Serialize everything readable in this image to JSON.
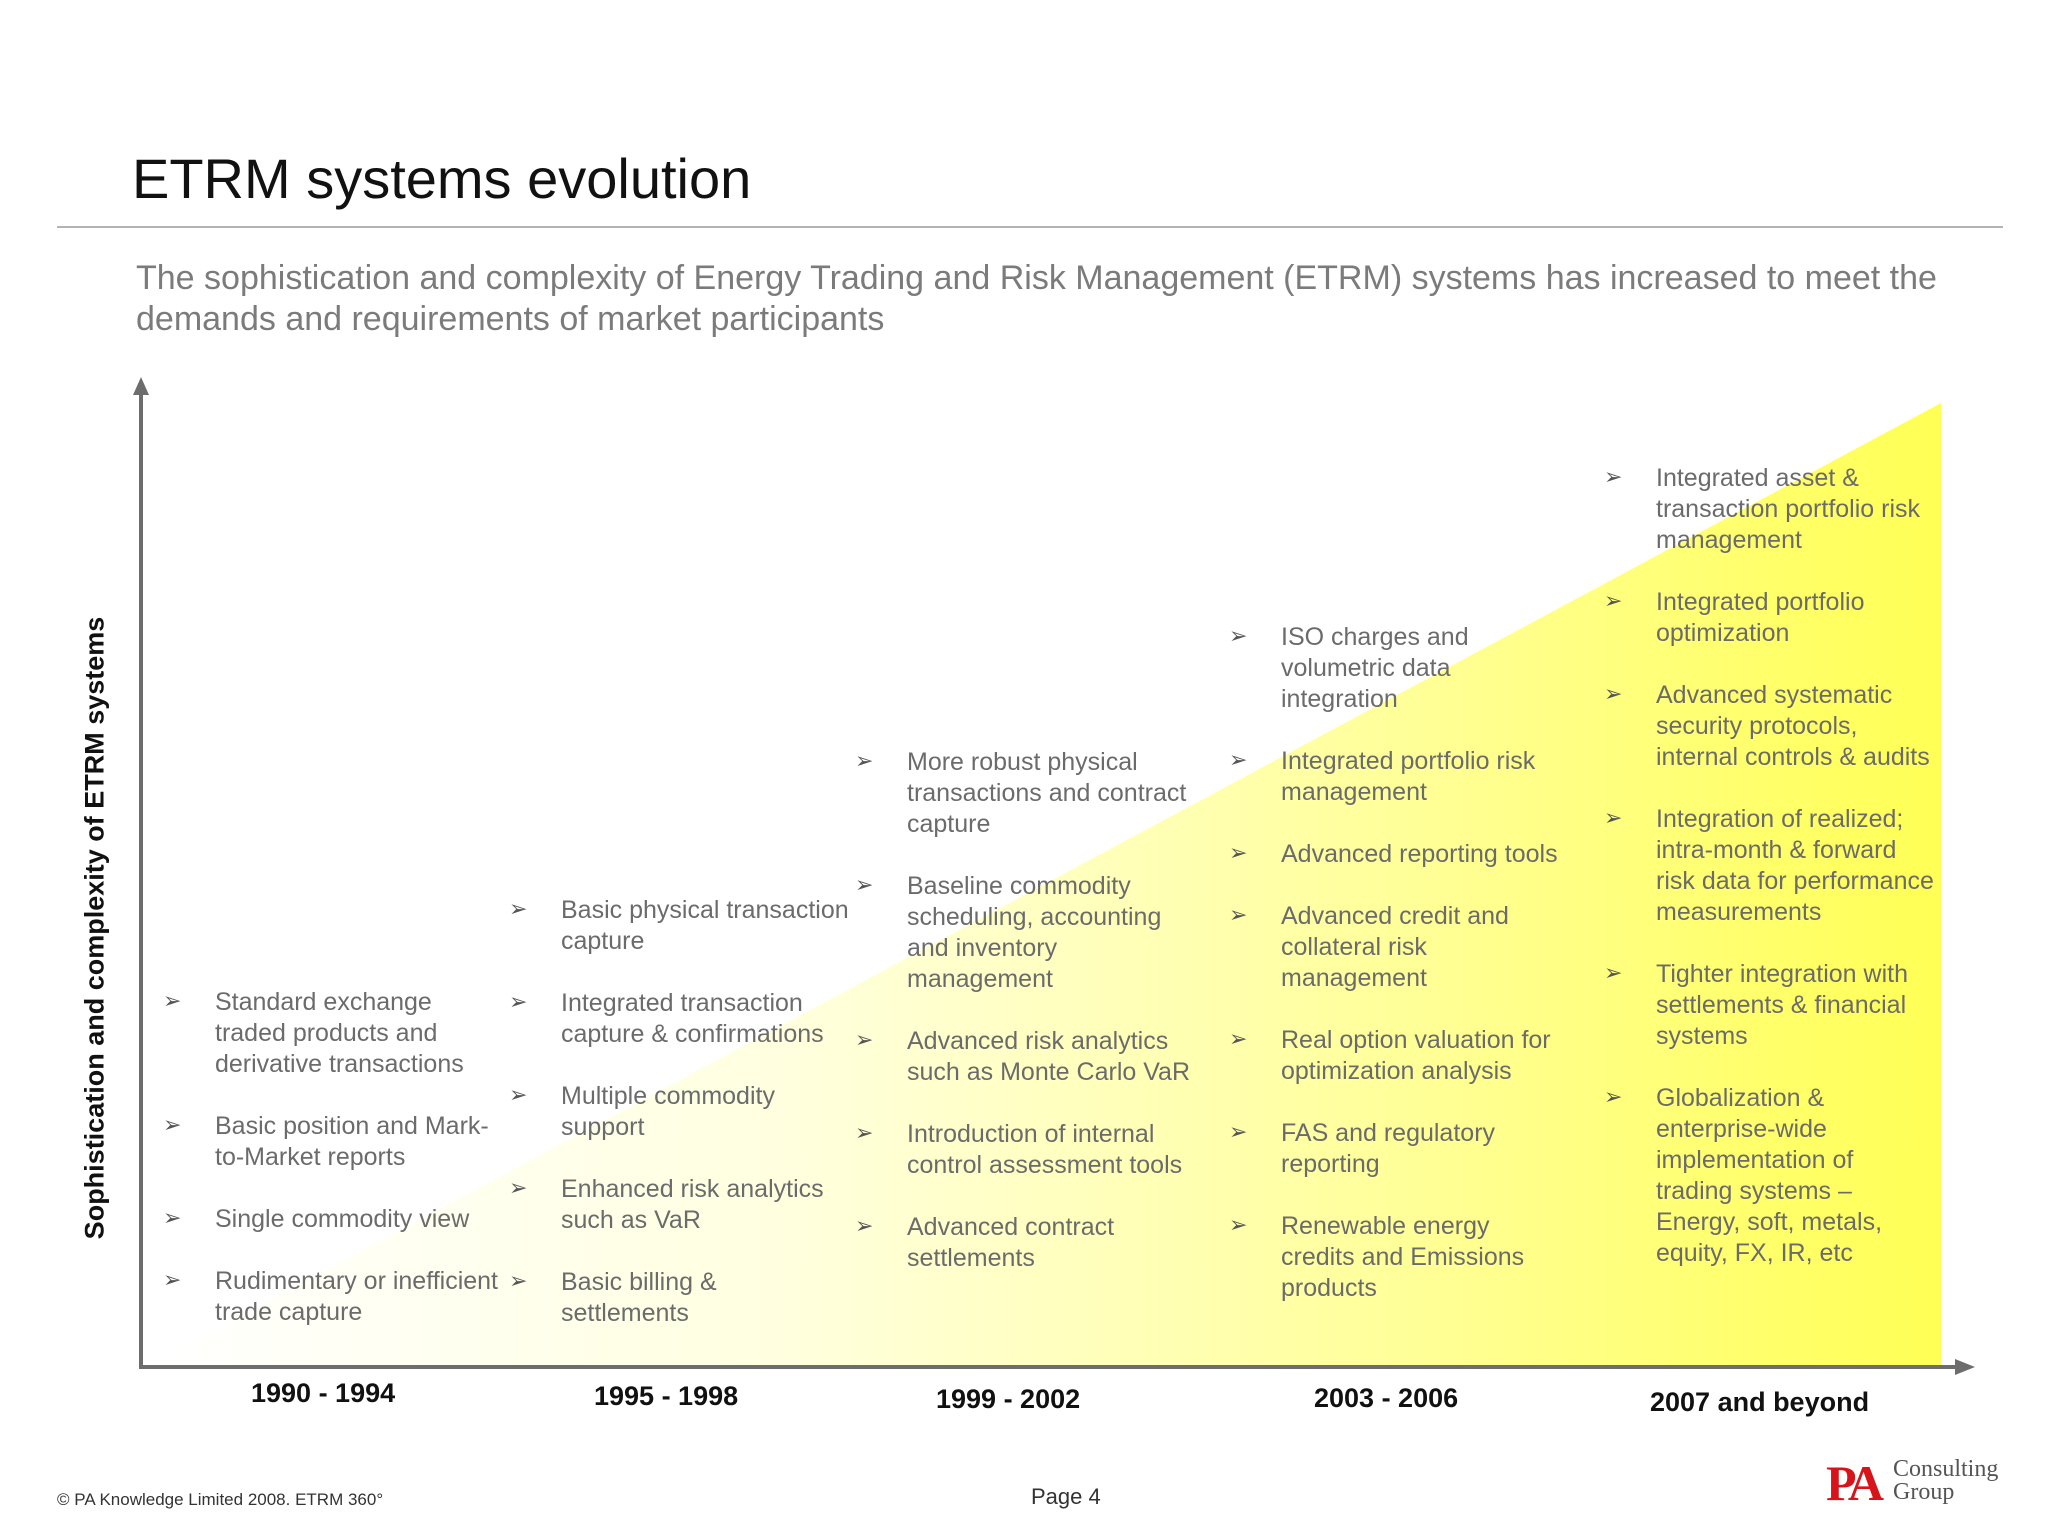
{
  "header": {
    "title": "ETRM systems evolution",
    "subtitle": "The sophistication and complexity of Energy Trading and Risk Management (ETRM) systems has increased to meet the demands and requirements of market participants"
  },
  "diagram": {
    "y_axis_label": "Sophistication and complexity of ETRM systems",
    "gradient_colors": [
      "#ffffff",
      "#ffff55"
    ],
    "bullet_icon": "arrowhead-bullet-icon",
    "periods": [
      {
        "label": "1990 - 1994",
        "items": [
          "Standard exchange traded products and derivative transactions",
          "Basic position and Mark-to-Market reports",
          "Single commodity view",
          "Rudimentary or inefficient trade capture"
        ]
      },
      {
        "label": "1995 - 1998",
        "items": [
          "Basic physical transaction capture",
          "Integrated transaction capture & confirmations",
          "Multiple commodity support",
          "Enhanced risk analytics such as VaR",
          "Basic billing & settlements"
        ]
      },
      {
        "label": "1999 - 2002",
        "items": [
          "More robust physical transactions and contract capture",
          "Baseline commodity scheduling, accounting and inventory management",
          "Advanced risk analytics such as Monte Carlo VaR",
          "Introduction of internal control assessment tools",
          "Advanced contract settlements"
        ]
      },
      {
        "label": "2003 - 2006",
        "items": [
          "ISO charges and volumetric data integration",
          "Integrated portfolio risk management",
          "Advanced reporting tools",
          "Advanced credit and collateral risk management",
          "Real option valuation for optimization analysis",
          "FAS and regulatory reporting",
          "Renewable energy credits and Emissions products"
        ]
      },
      {
        "label": "2007 and beyond",
        "items": [
          "Integrated asset & transaction portfolio risk management",
          "Integrated portfolio optimization",
          "Advanced systematic security protocols, internal controls & audits",
          "Integration of realized; intra-month & forward risk data for performance measurements",
          "Tighter integration with settlements & financial systems",
          "Globalization & enterprise-wide implementation of trading systems – Energy, soft, metals, equity, FX, IR, etc"
        ]
      }
    ]
  },
  "footer": {
    "copyright": "© PA Knowledge Limited 2008.  ETRM 360°",
    "page": "Page 4",
    "logo_mark": "PA",
    "logo_line1": "Consulting",
    "logo_line2": "Group",
    "logo_color": "#d7141a"
  }
}
